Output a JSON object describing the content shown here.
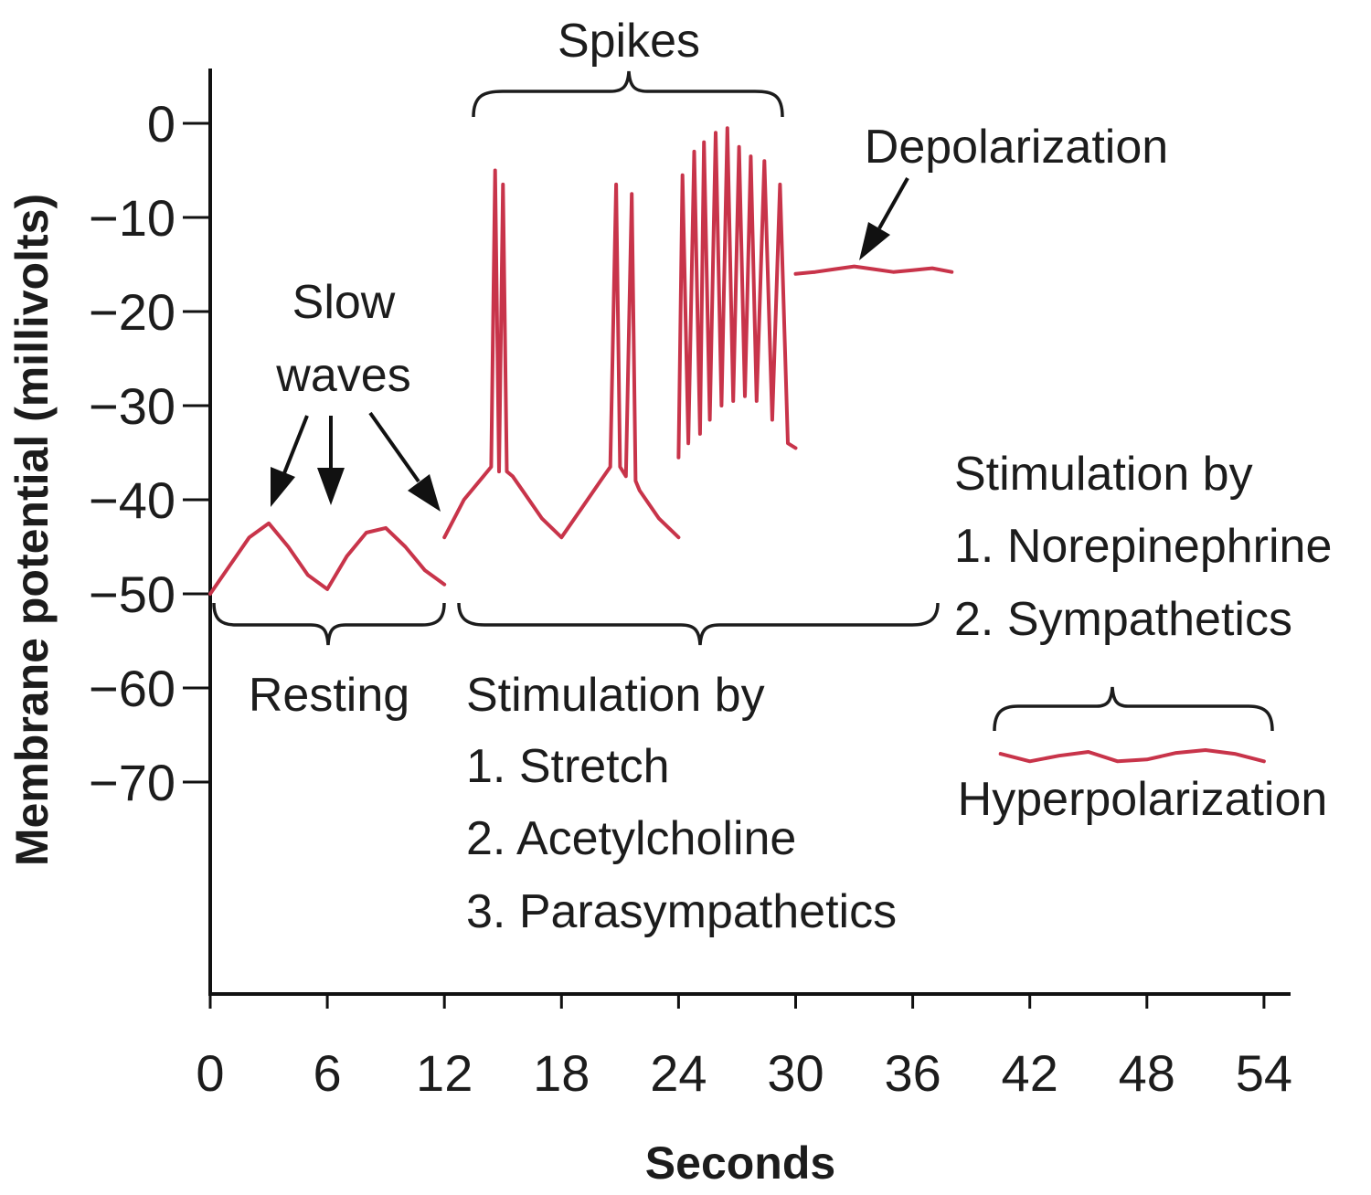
{
  "chart_data": {
    "type": "line",
    "title": "",
    "xlabel": "Seconds",
    "ylabel": "Membrane potential (millivolts)",
    "xlim": [
      0,
      55
    ],
    "ylim": [
      -90,
      5
    ],
    "x_ticks": [
      "0",
      "6",
      "12",
      "18",
      "24",
      "30",
      "36",
      "42",
      "48",
      "54"
    ],
    "x_tick_values": [
      0,
      6,
      12,
      18,
      24,
      30,
      36,
      42,
      48,
      54
    ],
    "y_ticks": [
      "0",
      "−10",
      "−20",
      "−30",
      "−40",
      "−50",
      "−60",
      "−70"
    ],
    "y_tick_values": [
      0,
      -10,
      -20,
      -30,
      -40,
      -50,
      -60,
      -70
    ],
    "line_color": "#c8344a",
    "series": [
      {
        "segment": "resting",
        "x": [
          0,
          1,
          2,
          3,
          4,
          5,
          6,
          7,
          8,
          9,
          10,
          11,
          12
        ],
        "y": [
          -50,
          -47,
          -44,
          -42.5,
          -45,
          -48,
          -49.5,
          -46,
          -43.5,
          -43,
          -45,
          -47.5,
          -49
        ]
      },
      {
        "segment": "stimulation-1",
        "x": [
          12,
          13,
          14,
          14.4,
          14.6,
          14.8,
          15,
          15.2,
          15.5,
          16,
          17,
          18,
          19,
          20,
          20.5,
          20.8,
          21,
          21.3,
          21.6,
          21.8,
          22,
          23,
          24
        ],
        "y": [
          -44,
          -40,
          -37.5,
          -36.5,
          -5,
          -37,
          -6.5,
          -37,
          -37.5,
          -39,
          -42,
          -44,
          -41,
          -38,
          -36.5,
          -6.5,
          -36.5,
          -37.5,
          -7.5,
          -38,
          -39,
          -42,
          -44
        ]
      },
      {
        "segment": "stimulation-2",
        "x": [
          24,
          24.2,
          24.5,
          24.8,
          25.1,
          25.3,
          25.6,
          25.9,
          26.2,
          26.5,
          26.8,
          27.1,
          27.4,
          27.7,
          28,
          28.4,
          28.8,
          29.2,
          29.6,
          30
        ],
        "y": [
          -35.5,
          -5.5,
          -34,
          -3,
          -33,
          -2,
          -31.5,
          -1,
          -30,
          -0.5,
          -29.5,
          -2.5,
          -29,
          -3.5,
          -29.5,
          -4,
          -31.5,
          -6.5,
          -34,
          -34.5
        ]
      },
      {
        "segment": "depolarization",
        "x": [
          30,
          31,
          32,
          33,
          34,
          35,
          36,
          37,
          38
        ],
        "y": [
          -16,
          -15.8,
          -15.5,
          -15.2,
          -15.5,
          -15.8,
          -15.6,
          -15.4,
          -15.8
        ]
      },
      {
        "segment": "hyperpolarization",
        "x": [
          40.5,
          42,
          43.5,
          45,
          46.5,
          48,
          49.5,
          51,
          52.5,
          54
        ],
        "y": [
          -67,
          -67.8,
          -67.2,
          -66.8,
          -67.8,
          -67.6,
          -66.9,
          -66.6,
          -67,
          -67.8
        ]
      }
    ],
    "annotations": {
      "spikes": "Spikes",
      "depolarization": "Depolarization",
      "slow_waves": [
        "Slow",
        "waves"
      ],
      "resting": "Resting",
      "stimulation_excitatory": [
        "Stimulation by",
        "1. Stretch",
        "2. Acetylcholine",
        "3. Parasympathetics"
      ],
      "stimulation_inhibitory": [
        "Stimulation by",
        "1. Norepinephrine",
        "2. Sympathetics"
      ],
      "hyperpolarization": "Hyperpolarization"
    }
  }
}
